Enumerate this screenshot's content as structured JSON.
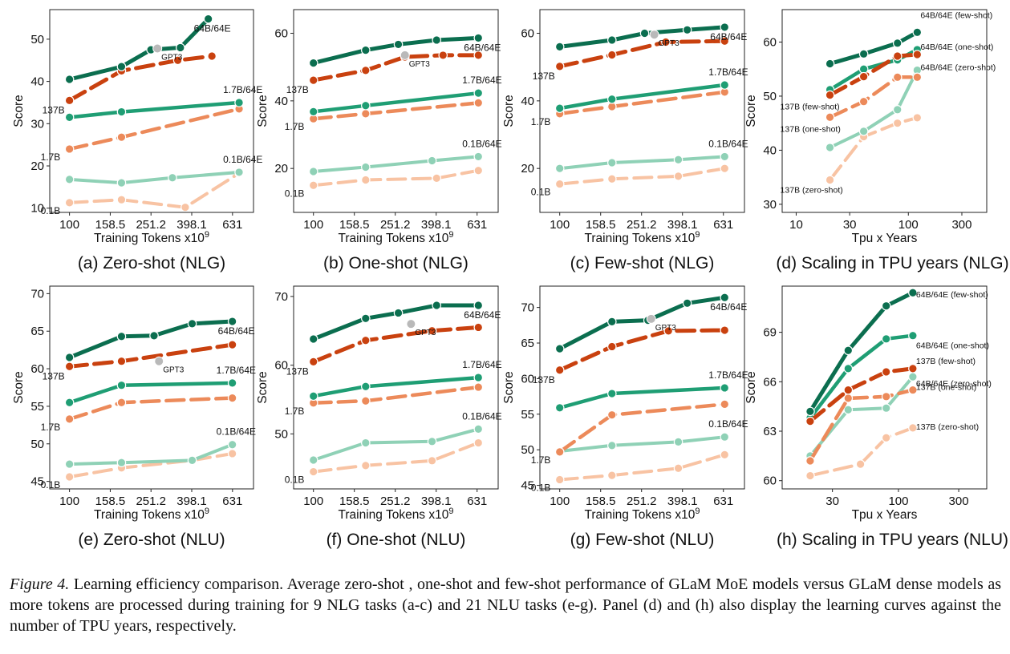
{
  "colors": {
    "moe64": "#0b6e4f",
    "dense137": "#c9410f",
    "moe17": "#1f9e74",
    "dense17": "#ec8a5a",
    "moe01": "#8fd1b6",
    "dense01": "#f8c3a3",
    "gpt3": "#b9b9b9"
  },
  "caption": {
    "label": "Figure 4.",
    "text": "Learning efficiency comparison. Average zero-shot , one-shot and few-shot performance of GLaM MoE models versus GLaM dense models as more tokens are processed during training for 9 NLG tasks (a-c) and 21 NLU tasks (e-g). Panel (d) and (h) also display the learning curves against the number of TPU years, respectively."
  },
  "chart_data": [
    {
      "type": "line",
      "subtitle": "(a) Zero-shot (NLG)",
      "xlabel": "Training Tokens x10^9",
      "ylabel": "Score",
      "xscale": "log",
      "xlim": [
        80,
        800
      ],
      "ylim": [
        9,
        57
      ],
      "xticks": [
        100,
        158.5,
        251.2,
        398.1,
        631
      ],
      "xtick_labels": [
        "100",
        "158.5",
        "251.2",
        "398.1",
        "631"
      ],
      "yticks": [
        10,
        20,
        30,
        40,
        50
      ],
      "series": [
        {
          "name": "64B/64E",
          "style": "moe64",
          "x": [
            100,
            180,
            251,
            350,
            480
          ],
          "y": [
            40.5,
            43.5,
            47.5,
            48,
            54.8
          ]
        },
        {
          "name": "137B",
          "style": "dense137",
          "x": [
            100,
            180,
            340,
            500
          ],
          "y": [
            35.5,
            42.5,
            45,
            46
          ]
        },
        {
          "name": "1.7B/64E",
          "style": "moe17",
          "x": [
            100,
            180,
            680
          ],
          "y": [
            31.5,
            32.8,
            35
          ]
        },
        {
          "name": "1.7B",
          "style": "dense17",
          "x": [
            100,
            180,
            680
          ],
          "y": [
            24,
            26.8,
            33.5
          ]
        },
        {
          "name": "0.1B/64E",
          "style": "moe01",
          "x": [
            100,
            180,
            320,
            680
          ],
          "y": [
            16.8,
            16,
            17.2,
            18.5
          ]
        },
        {
          "name": "0.1B",
          "style": "dense01",
          "x": [
            100,
            180,
            370,
            680
          ],
          "y": [
            11.3,
            12,
            10.2,
            18.3
          ]
        }
      ],
      "gpt3": {
        "label": "GPT3",
        "x": 270,
        "y": 47.8
      }
    },
    {
      "type": "line",
      "subtitle": "(b) One-shot (NLG)",
      "xlabel": "Training Tokens x10^9",
      "ylabel": "Score",
      "xscale": "log",
      "xlim": [
        80,
        800
      ],
      "ylim": [
        7,
        67
      ],
      "xticks": [
        100,
        158.5,
        251.2,
        398.1,
        631
      ],
      "xtick_labels": [
        "100",
        "158.5",
        "251.2",
        "398.1",
        "631"
      ],
      "yticks": [
        20,
        40,
        60
      ],
      "series": [
        {
          "name": "64B/64E",
          "style": "moe64",
          "x": [
            100,
            180,
            260,
            400,
            640
          ],
          "y": [
            51.2,
            55,
            56.7,
            58,
            58.6
          ]
        },
        {
          "name": "137B",
          "style": "dense137",
          "x": [
            100,
            180,
            280,
            430,
            640
          ],
          "y": [
            46.1,
            49,
            53,
            53.5,
            53.5
          ]
        },
        {
          "name": "1.7B/64E",
          "style": "moe17",
          "x": [
            100,
            180,
            640
          ],
          "y": [
            36.8,
            38.6,
            42.3
          ]
        },
        {
          "name": "1.7B",
          "style": "dense17",
          "x": [
            100,
            180,
            640
          ],
          "y": [
            34.7,
            36.2,
            39.4
          ]
        },
        {
          "name": "0.1B/64E",
          "style": "moe01",
          "x": [
            100,
            180,
            380,
            640
          ],
          "y": [
            19.1,
            20.4,
            22.3,
            23.5
          ]
        },
        {
          "name": "0.1B",
          "style": "dense01",
          "x": [
            100,
            180,
            400,
            640
          ],
          "y": [
            15,
            16.6,
            17.1,
            19.4
          ]
        }
      ],
      "gpt3": {
        "label": "GPT3",
        "x": 280,
        "y": 53.5
      }
    },
    {
      "type": "line",
      "subtitle": "(c) Few-shot (NLG)",
      "xlabel": "Training Tokens x10^9",
      "ylabel": "Score",
      "xscale": "log",
      "xlim": [
        80,
        800
      ],
      "ylim": [
        7,
        67
      ],
      "xticks": [
        100,
        158.5,
        251.2,
        398.1,
        631
      ],
      "xtick_labels": [
        "100",
        "158.5",
        "251.2",
        "398.1",
        "631"
      ],
      "yticks": [
        20,
        40,
        60
      ],
      "series": [
        {
          "name": "64B/64E",
          "style": "moe64",
          "x": [
            100,
            180,
            260,
            420,
            640
          ],
          "y": [
            56,
            58,
            60,
            61,
            61.8
          ]
        },
        {
          "name": "137B",
          "style": "dense137",
          "x": [
            100,
            180,
            330,
            640
          ],
          "y": [
            50.2,
            53.6,
            57.4,
            57.7
          ]
        },
        {
          "name": "1.7B/64E",
          "style": "moe17",
          "x": [
            100,
            180,
            640
          ],
          "y": [
            37.8,
            40.5,
            44.7
          ]
        },
        {
          "name": "1.7B",
          "style": "dense17",
          "x": [
            100,
            180,
            640
          ],
          "y": [
            36.2,
            38.3,
            42.6
          ]
        },
        {
          "name": "0.1B/64E",
          "style": "moe01",
          "x": [
            100,
            180,
            380,
            640
          ],
          "y": [
            20,
            21.7,
            22.6,
            23.5
          ]
        },
        {
          "name": "0.1B",
          "style": "dense01",
          "x": [
            100,
            180,
            380,
            640
          ],
          "y": [
            15.4,
            16.9,
            17.7,
            20
          ]
        }
      ],
      "gpt3": {
        "label": "GPT3",
        "x": 290,
        "y": 59.6
      }
    },
    {
      "type": "line",
      "subtitle": "(d) Scaling in TPU years (NLG)",
      "xlabel": "Tpu x Years",
      "ylabel": "Score",
      "xscale": "log",
      "xlim": [
        7.5,
        500
      ],
      "ylim": [
        28.5,
        66
      ],
      "xticks": [
        10,
        30,
        100,
        300
      ],
      "xtick_labels": [
        "10",
        "30",
        "100",
        "300"
      ],
      "yticks": [
        30,
        40,
        50,
        60
      ],
      "series": [
        {
          "name": "64B/64E (few-shot)",
          "style": "moe64",
          "x": [
            20,
            40,
            80,
            120
          ],
          "y": [
            56,
            57.8,
            59.8,
            61.8
          ]
        },
        {
          "name": "64B/64E (one-shot)",
          "style": "moe17",
          "x": [
            20,
            40,
            80,
            120
          ],
          "y": [
            51.2,
            55,
            56.7,
            58.6
          ]
        },
        {
          "name": "64B/64E (zero-shot)",
          "style": "moe01",
          "x": [
            20,
            40,
            80,
            120
          ],
          "y": [
            40.5,
            43.5,
            47.5,
            54.8
          ]
        },
        {
          "name": "137B (few-shot)",
          "style": "dense137",
          "x": [
            20,
            40,
            80,
            120
          ],
          "y": [
            50.2,
            53.6,
            57.4,
            57.7
          ]
        },
        {
          "name": "137B (one-shot)",
          "style": "dense17",
          "x": [
            20,
            40,
            80,
            120
          ],
          "y": [
            46.1,
            49,
            53.5,
            53.5
          ]
        },
        {
          "name": "137B (zero-shot)",
          "style": "dense01",
          "x": [
            20,
            40,
            80,
            120
          ],
          "y": [
            34.5,
            42.5,
            45,
            46
          ]
        }
      ]
    },
    {
      "type": "line",
      "subtitle": "(e) Zero-shot (NLU)",
      "xlabel": "Training Tokens x10^9",
      "ylabel": "Score",
      "xscale": "log",
      "xlim": [
        80,
        800
      ],
      "ylim": [
        44,
        71
      ],
      "xticks": [
        100,
        158.5,
        251.2,
        398.1,
        631
      ],
      "xtick_labels": [
        "100",
        "158.5",
        "251.2",
        "398.1",
        "631"
      ],
      "yticks": [
        45,
        50,
        55,
        60,
        65,
        70
      ],
      "series": [
        {
          "name": "64B/64E",
          "style": "moe64",
          "x": [
            100,
            180,
            260,
            400,
            630
          ],
          "y": [
            61.5,
            64.3,
            64.4,
            66,
            66.3
          ]
        },
        {
          "name": "137B",
          "style": "dense137",
          "x": [
            100,
            180,
            630
          ],
          "y": [
            60.3,
            61,
            63.2
          ]
        },
        {
          "name": "1.7B/64E",
          "style": "moe17",
          "x": [
            100,
            180,
            630
          ],
          "y": [
            55.5,
            57.8,
            58.1
          ]
        },
        {
          "name": "1.7B",
          "style": "dense17",
          "x": [
            100,
            180,
            630
          ],
          "y": [
            53.3,
            55.5,
            56.1
          ]
        },
        {
          "name": "0.1B/64E",
          "style": "moe01",
          "x": [
            100,
            180,
            400,
            630
          ],
          "y": [
            47.3,
            47.5,
            47.8,
            49.9
          ]
        },
        {
          "name": "0.1B",
          "style": "dense01",
          "x": [
            100,
            180,
            400,
            630
          ],
          "y": [
            45.6,
            46.8,
            47.8,
            48.7
          ]
        }
      ],
      "gpt3": {
        "label": "GPT3",
        "x": 275,
        "y": 61
      }
    },
    {
      "type": "line",
      "subtitle": "(f) One-shot (NLU)",
      "xlabel": "Training Tokens x10^9",
      "ylabel": "Score",
      "xscale": "log",
      "xlim": [
        80,
        800
      ],
      "ylim": [
        42,
        71.5
      ],
      "xticks": [
        100,
        158.5,
        251.2,
        398.1,
        631
      ],
      "xtick_labels": [
        "100",
        "158.5",
        "251.2",
        "398.1",
        "631"
      ],
      "yticks": [
        50,
        60,
        70
      ],
      "series": [
        {
          "name": "64B/64E",
          "style": "moe64",
          "x": [
            100,
            180,
            260,
            400,
            640
          ],
          "y": [
            63.8,
            66.8,
            67.6,
            68.7,
            68.7
          ]
        },
        {
          "name": "137B",
          "style": "dense137",
          "x": [
            100,
            180,
            380,
            640
          ],
          "y": [
            60.5,
            63.6,
            65,
            65.5
          ]
        },
        {
          "name": "1.7B/64E",
          "style": "moe17",
          "x": [
            100,
            180,
            640
          ],
          "y": [
            55.5,
            56.9,
            58.2
          ]
        },
        {
          "name": "1.7B",
          "style": "dense17",
          "x": [
            100,
            180,
            640
          ],
          "y": [
            54.5,
            54.8,
            56.8
          ]
        },
        {
          "name": "0.1B/64E",
          "style": "moe01",
          "x": [
            100,
            180,
            380,
            640
          ],
          "y": [
            46.2,
            48.7,
            48.9,
            50.7
          ]
        },
        {
          "name": "0.1B",
          "style": "dense01",
          "x": [
            100,
            180,
            380,
            640
          ],
          "y": [
            44.5,
            45.4,
            46.1,
            48.7
          ]
        }
      ],
      "gpt3": {
        "label": "GPT3",
        "x": 300,
        "y": 66
      }
    },
    {
      "type": "line",
      "subtitle": "(g) Few-shot (NLU)",
      "xlabel": "Training Tokens x10^9",
      "ylabel": "Score",
      "xscale": "log",
      "xlim": [
        80,
        800
      ],
      "ylim": [
        44.5,
        73
      ],
      "xticks": [
        100,
        158.5,
        251.2,
        398.1,
        631
      ],
      "xtick_labels": [
        "100",
        "158.5",
        "251.2",
        "398.1",
        "631"
      ],
      "yticks": [
        45,
        50,
        55,
        60,
        65,
        70
      ],
      "series": [
        {
          "name": "64B/64E",
          "style": "moe64",
          "x": [
            100,
            180,
            270,
            420,
            640
          ],
          "y": [
            64.2,
            68,
            68.2,
            70.6,
            71.4
          ]
        },
        {
          "name": "137B",
          "style": "dense137",
          "x": [
            100,
            180,
            340,
            640
          ],
          "y": [
            61.2,
            64.5,
            66.7,
            66.8
          ]
        },
        {
          "name": "1.7B/64E",
          "style": "moe17",
          "x": [
            100,
            180,
            640
          ],
          "y": [
            55.9,
            57.9,
            58.7
          ]
        },
        {
          "name": "1.7B",
          "style": "dense17",
          "x": [
            100,
            180,
            640
          ],
          "y": [
            49.7,
            54.9,
            56.4
          ]
        },
        {
          "name": "0.1B/64E",
          "style": "moe01",
          "x": [
            100,
            180,
            380,
            640
          ],
          "y": [
            49.8,
            50.6,
            51.1,
            51.8
          ]
        },
        {
          "name": "0.1B",
          "style": "dense01",
          "x": [
            100,
            180,
            380,
            640
          ],
          "y": [
            45.8,
            46.4,
            47.4,
            49.3
          ]
        }
      ],
      "gpt3": {
        "label": "GPT3",
        "x": 280,
        "y": 68.4
      }
    },
    {
      "type": "line",
      "subtitle": "(h) Scaling in TPU years (NLU)",
      "xlabel": "Tpu x Years",
      "ylabel": "Score",
      "xscale": "log",
      "xlim": [
        12,
        500
      ],
      "ylim": [
        59.5,
        71.8
      ],
      "xticks": [
        30,
        100,
        300
      ],
      "xtick_labels": [
        "30",
        "100",
        "300"
      ],
      "yticks": [
        60,
        63,
        66,
        69
      ],
      "series": [
        {
          "name": "64B/64E (few-shot)",
          "style": "moe64",
          "x": [
            20,
            40,
            80,
            130
          ],
          "y": [
            64.2,
            67.9,
            70.6,
            71.4
          ]
        },
        {
          "name": "64B/64E (one-shot)",
          "style": "moe17",
          "x": [
            20,
            40,
            80,
            130
          ],
          "y": [
            63.8,
            66.8,
            68.6,
            68.8
          ]
        },
        {
          "name": "64B/64E (zero-shot)",
          "style": "moe01",
          "x": [
            20,
            40,
            80,
            130
          ],
          "y": [
            61.5,
            64.3,
            64.4,
            66.3
          ]
        },
        {
          "name": "137B (few-shot)",
          "style": "dense137",
          "x": [
            20,
            40,
            80,
            130
          ],
          "y": [
            63.6,
            65.5,
            66.6,
            66.8
          ]
        },
        {
          "name": "137B (one-shot)",
          "style": "dense17",
          "x": [
            20,
            40,
            80,
            130
          ],
          "y": [
            61.2,
            65,
            65.1,
            65.5
          ]
        },
        {
          "name": "137B (zero-shot)",
          "style": "dense01",
          "x": [
            20,
            50,
            80,
            130
          ],
          "y": [
            60.3,
            61,
            62.6,
            63.2
          ]
        }
      ]
    }
  ]
}
